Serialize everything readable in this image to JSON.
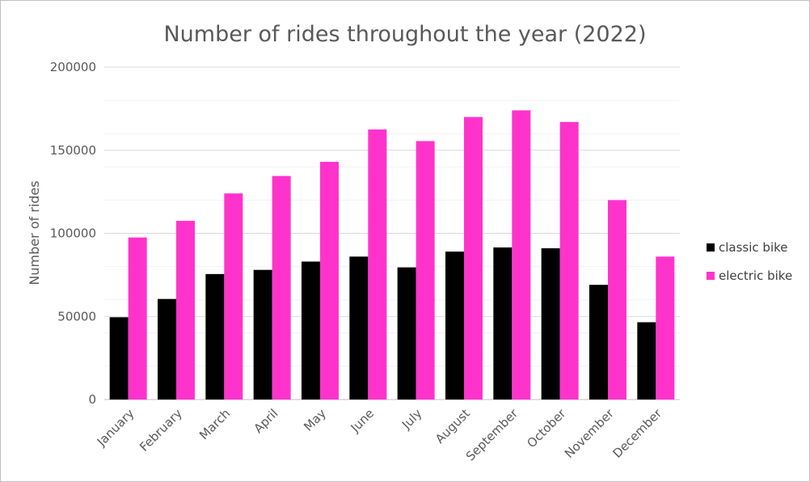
{
  "chart_data": {
    "type": "bar",
    "title": "Number of rides throughout the year (2022)",
    "xlabel": "",
    "ylabel": "Number of rides",
    "categories": [
      "January",
      "February",
      "March",
      "April",
      "May",
      "June",
      "July",
      "August",
      "September",
      "October",
      "November",
      "December"
    ],
    "series": [
      {
        "name": "classic bike",
        "color": "#000000",
        "values": [
          49500,
          60500,
          75500,
          78000,
          83000,
          86000,
          79500,
          89000,
          91500,
          91000,
          69000,
          46500
        ]
      },
      {
        "name": "electric bike",
        "color": "#ff33cc",
        "values": [
          97500,
          107500,
          124000,
          134500,
          143000,
          162500,
          155500,
          170000,
          174000,
          167000,
          120000,
          86000
        ]
      }
    ],
    "ylim": [
      0,
      200000
    ],
    "yticks": [
      0,
      50000,
      100000,
      150000,
      200000
    ],
    "ytick_labels": [
      "0",
      "50000",
      "100000",
      "150000",
      "200000"
    ],
    "major_gridlines": true,
    "minor_gridlines": true,
    "legend_position": "right"
  }
}
